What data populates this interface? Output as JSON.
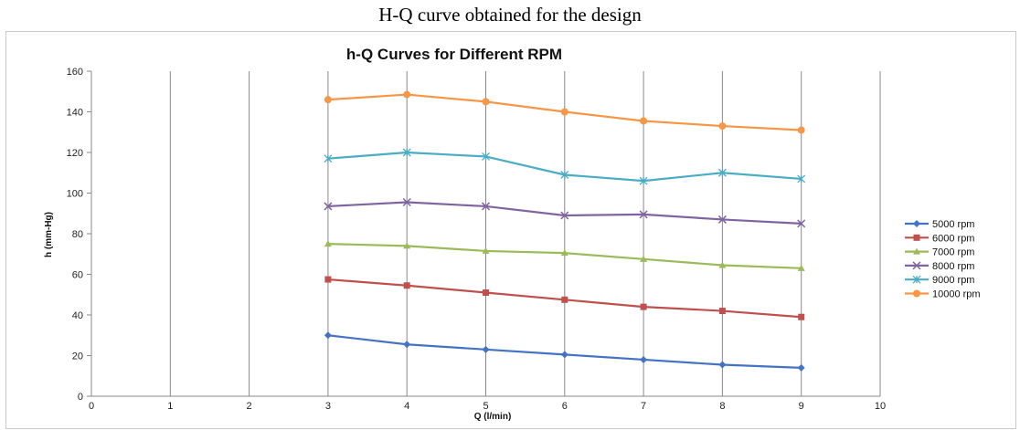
{
  "caption": "H-Q curve obtained for the design",
  "chart_data": {
    "type": "line",
    "title": "h-Q Curves for Different RPM",
    "xlabel": "Q (l/min)",
    "ylabel": "h (mm-Hg)",
    "xlim": [
      0,
      10
    ],
    "ylim": [
      0,
      160
    ],
    "xticks": [
      "0",
      "1",
      "2",
      "3",
      "4",
      "5",
      "6",
      "7",
      "8",
      "9",
      "10"
    ],
    "yticks": [
      "0",
      "20",
      "40",
      "60",
      "80",
      "100",
      "120",
      "140",
      "160"
    ],
    "grid": "vertical",
    "legend_position": "right",
    "x": [
      3,
      4,
      5,
      6,
      7,
      8,
      9
    ],
    "series": [
      {
        "name": "5000 rpm",
        "color": "#4472C4",
        "marker": "diamond",
        "values": [
          30,
          25.5,
          23,
          20.5,
          18,
          15.5,
          14
        ]
      },
      {
        "name": "6000 rpm",
        "color": "#C0504D",
        "marker": "square",
        "values": [
          57.5,
          54.5,
          51,
          47.5,
          44,
          42,
          39
        ]
      },
      {
        "name": "7000 rpm",
        "color": "#9BBB59",
        "marker": "triangle",
        "values": [
          75,
          74,
          71.5,
          70.5,
          67.5,
          64.5,
          63
        ]
      },
      {
        "name": "8000 rpm",
        "color": "#8064A2",
        "marker": "x",
        "values": [
          93.5,
          95.5,
          93.5,
          89,
          89.5,
          87,
          85
        ]
      },
      {
        "name": "9000 rpm",
        "color": "#4BACC6",
        "marker": "star",
        "values": [
          117,
          120,
          118,
          109,
          106,
          110,
          107
        ]
      },
      {
        "name": "10000 rpm",
        "color": "#F79646",
        "marker": "circle",
        "values": [
          146,
          148.5,
          145,
          140,
          135.5,
          133,
          131
        ]
      }
    ]
  }
}
